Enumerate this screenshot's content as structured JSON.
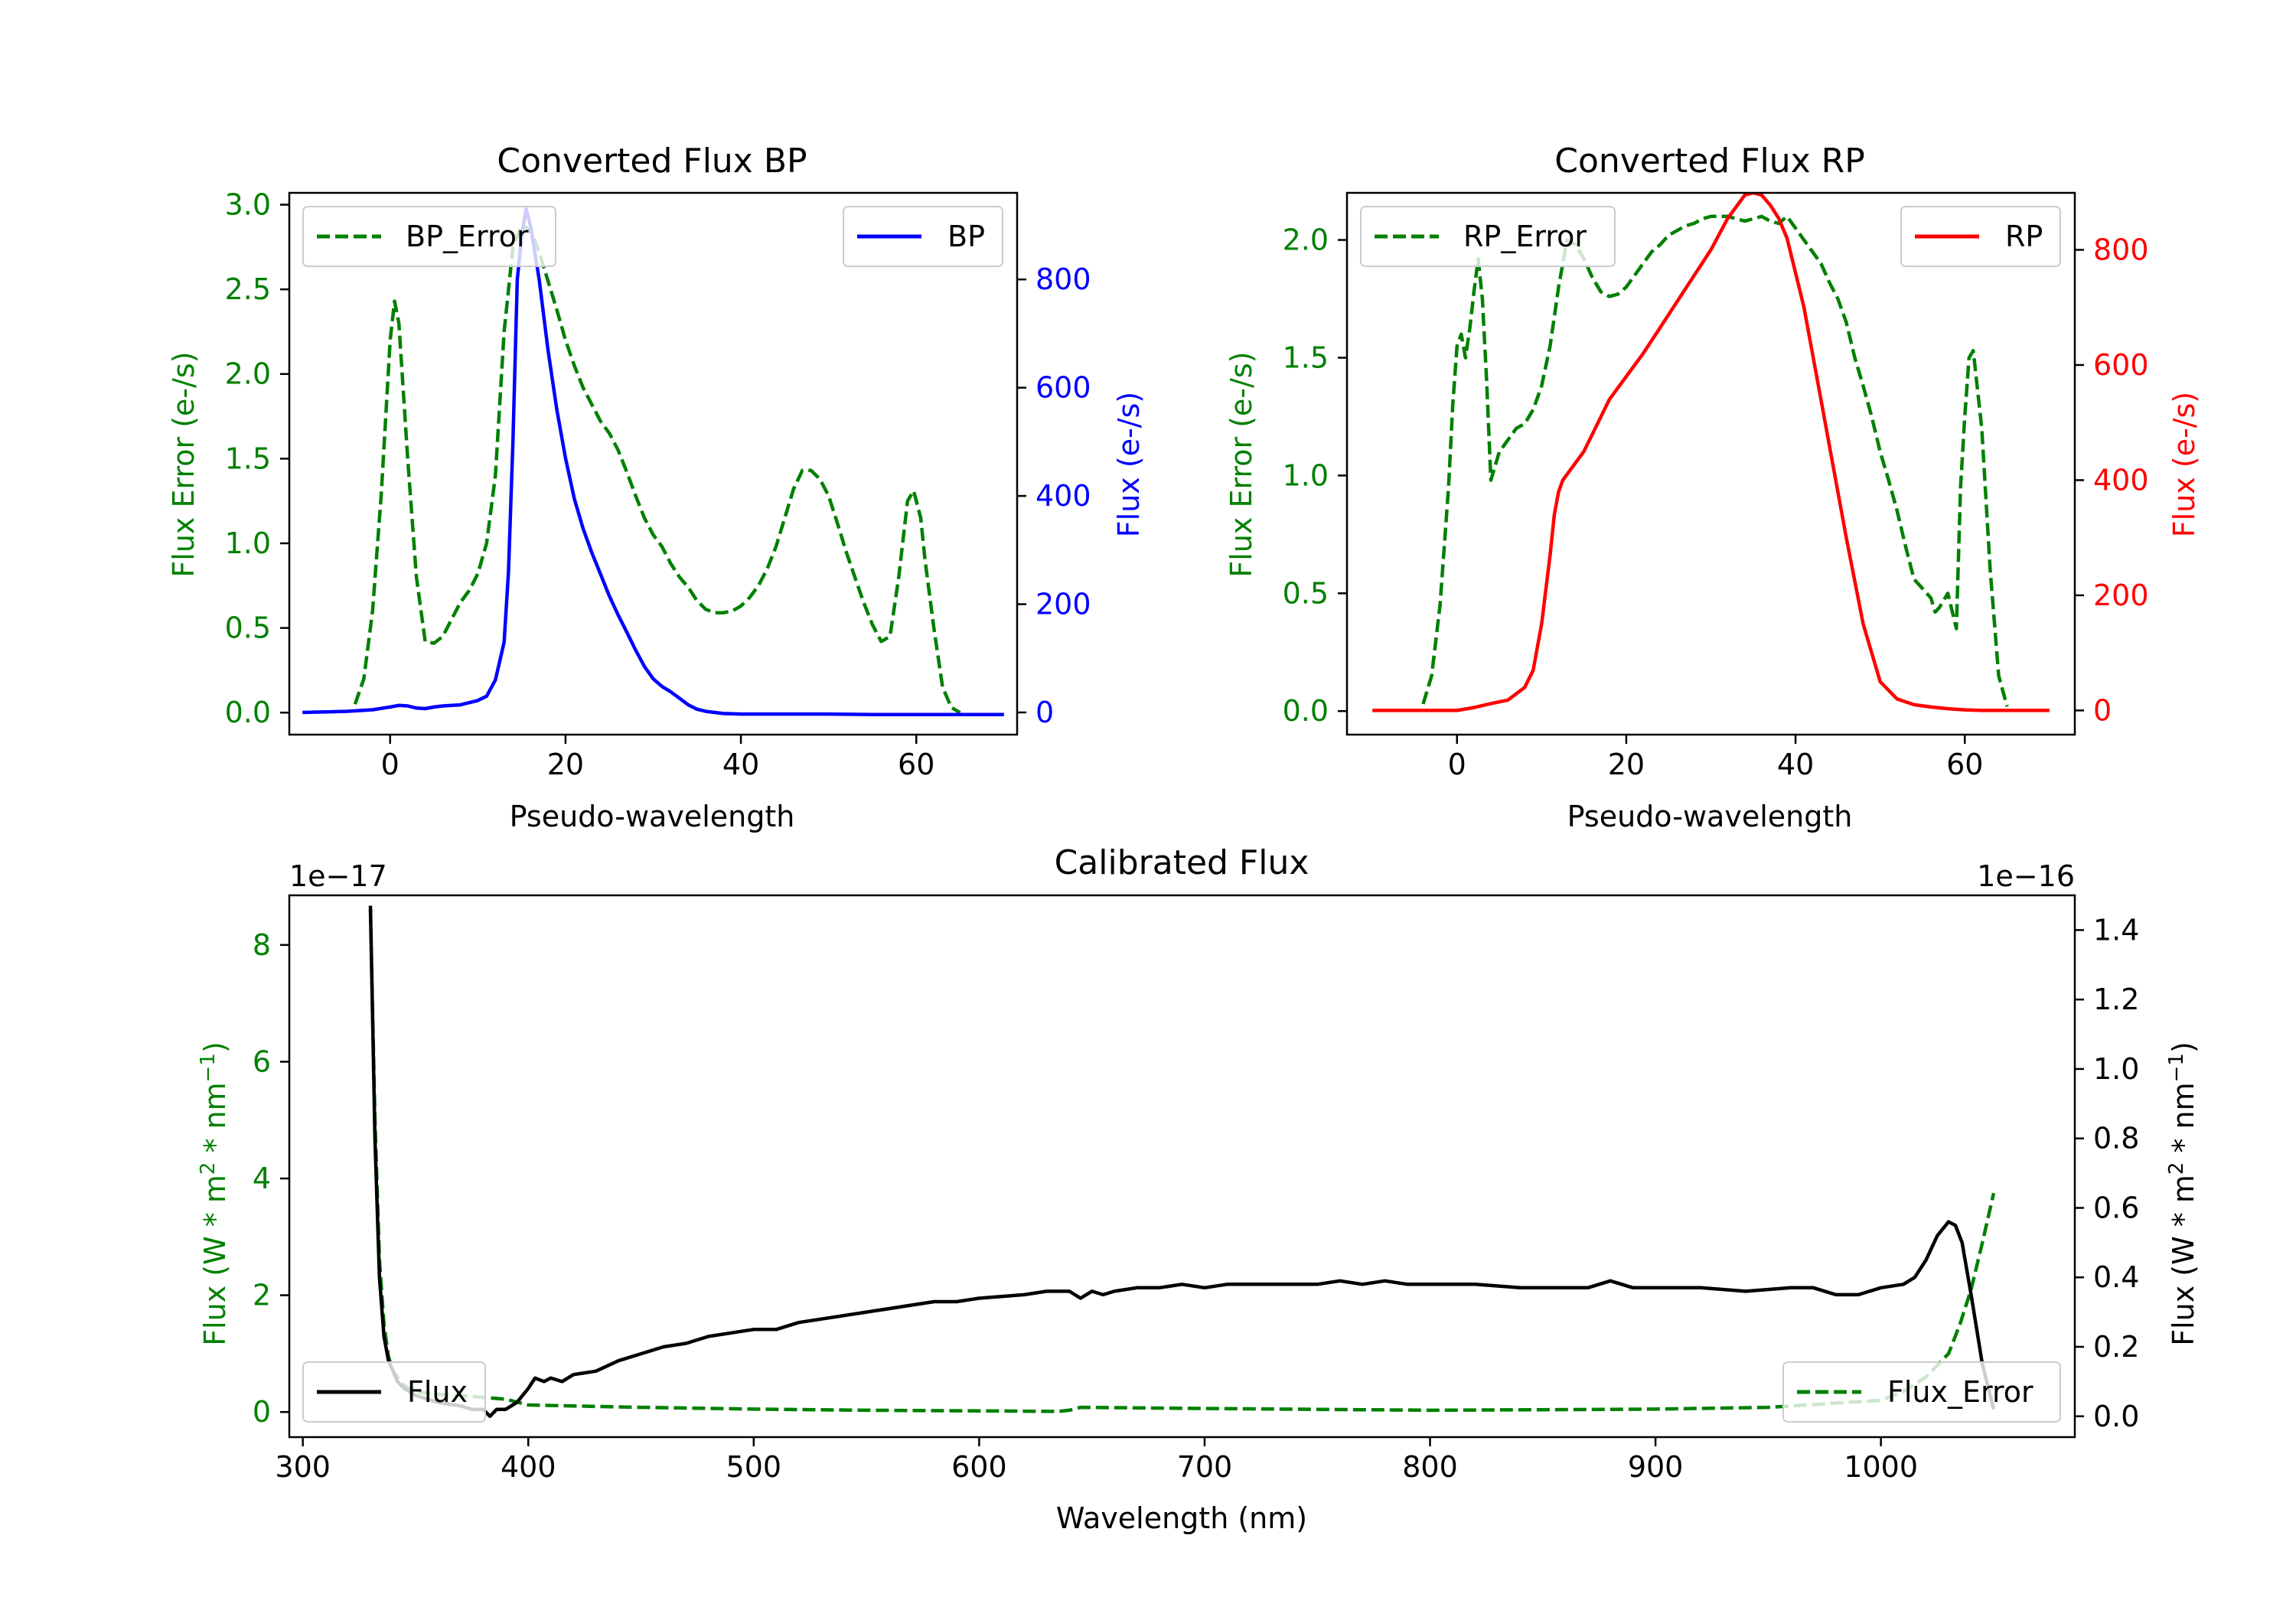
{
  "chart_data": [
    {
      "type": "line",
      "title": "Converted Flux BP",
      "xlabel": "Pseudo-wavelength",
      "ylabel_left": "Flux Error (e-/s)",
      "ylabel_right": "Flux (e-/s)",
      "xlim": [
        -11.5,
        71.5
      ],
      "ylim_left": [
        -0.13,
        3.07
      ],
      "ylim_right": [
        -41,
        960
      ],
      "x_ticks": [
        0,
        20,
        40,
        60
      ],
      "x_tick_labels": [
        "0",
        "20",
        "40",
        "60"
      ],
      "y_left_ticks": [
        0.0,
        0.5,
        1.0,
        1.5,
        2.0,
        2.5,
        3.0
      ],
      "y_left_tick_labels": [
        "0.0",
        "0.5",
        "1.0",
        "1.5",
        "2.0",
        "2.5",
        "3.0"
      ],
      "y_right_ticks": [
        0,
        200,
        400,
        600,
        800
      ],
      "y_right_tick_labels": [
        "0",
        "200",
        "400",
        "600",
        "800"
      ],
      "colors": {
        "left": "#008000",
        "right": "#0000ff"
      },
      "series": [
        {
          "name": "BP_Error",
          "axis": "left",
          "style": "dashed",
          "color": "#008000",
          "x": [
            -4,
            -3,
            -2,
            -1,
            0,
            0.5,
            1,
            2,
            3,
            4,
            5,
            6,
            7,
            8,
            9,
            10,
            11,
            12,
            13,
            14,
            15,
            16,
            17,
            18,
            19,
            20,
            21,
            22,
            23,
            24,
            25,
            26,
            27,
            28,
            29,
            30,
            31,
            32,
            33,
            34,
            35,
            36,
            37,
            38,
            39,
            40,
            41,
            42,
            43,
            44,
            45,
            46,
            47,
            48,
            49,
            50,
            51,
            52,
            53,
            54,
            55,
            56,
            57,
            58,
            59,
            59.7,
            60.5,
            61,
            62,
            63,
            64,
            65
          ],
          "y": [
            0.05,
            0.2,
            0.6,
            1.3,
            2.2,
            2.43,
            2.3,
            1.5,
            0.8,
            0.42,
            0.41,
            0.45,
            0.55,
            0.65,
            0.72,
            0.82,
            1.0,
            1.4,
            2.25,
            2.75,
            2.88,
            2.85,
            2.72,
            2.55,
            2.38,
            2.2,
            2.05,
            1.92,
            1.82,
            1.72,
            1.65,
            1.55,
            1.42,
            1.28,
            1.15,
            1.05,
            0.98,
            0.88,
            0.8,
            0.74,
            0.66,
            0.61,
            0.59,
            0.59,
            0.6,
            0.63,
            0.68,
            0.75,
            0.85,
            0.98,
            1.15,
            1.32,
            1.43,
            1.43,
            1.38,
            1.28,
            1.12,
            0.95,
            0.8,
            0.65,
            0.52,
            0.42,
            0.45,
            0.8,
            1.25,
            1.31,
            1.15,
            0.9,
            0.5,
            0.15,
            0.03,
            0.0
          ]
        },
        {
          "name": "BP",
          "axis": "right",
          "style": "solid",
          "color": "#0000ff",
          "x": [
            -10,
            -5,
            -2,
            0,
            1,
            2,
            3,
            4,
            5,
            6,
            8,
            10,
            11,
            12,
            13,
            13.5,
            14,
            14.5,
            15,
            15.5,
            16,
            17,
            18,
            19,
            20,
            21,
            22,
            23,
            24,
            25,
            26,
            27,
            28,
            29,
            30,
            31,
            32,
            33,
            34,
            35,
            36,
            37,
            38,
            40,
            45,
            50,
            55,
            60,
            65,
            70
          ],
          "y": [
            0,
            2,
            5,
            10,
            13,
            12,
            8,
            7,
            10,
            12,
            14,
            22,
            30,
            60,
            130,
            260,
            500,
            800,
            880,
            930,
            900,
            800,
            670,
            560,
            470,
            395,
            340,
            295,
            255,
            215,
            180,
            148,
            115,
            85,
            62,
            48,
            38,
            26,
            14,
            6,
            2,
            0,
            -2,
            -3,
            -3,
            -3,
            -4,
            -4,
            -4,
            -4
          ]
        }
      ],
      "legend": [
        {
          "label": "BP_Error",
          "style": "dashed",
          "color": "#008000",
          "location": "upper left"
        },
        {
          "label": "BP",
          "style": "solid",
          "color": "#0000ff",
          "location": "upper right"
        }
      ]
    },
    {
      "type": "line",
      "title": "Converted Flux RP",
      "xlabel": "Pseudo-wavelength",
      "ylabel_left": "Flux Error (e-/s)",
      "ylabel_right": "Flux (e-/s)",
      "xlim": [
        -13,
        73
      ],
      "ylim_left": [
        -0.1,
        2.2
      ],
      "ylim_right": [
        -42,
        899
      ],
      "x_ticks": [
        0,
        20,
        40,
        60
      ],
      "x_tick_labels": [
        "0",
        "20",
        "40",
        "60"
      ],
      "y_left_ticks": [
        0.0,
        0.5,
        1.0,
        1.5,
        2.0
      ],
      "y_left_tick_labels": [
        "0.0",
        "0.5",
        "1.0",
        "1.5",
        "2.0"
      ],
      "y_right_ticks": [
        0,
        200,
        400,
        600,
        800
      ],
      "y_right_tick_labels": [
        "0",
        "200",
        "400",
        "600",
        "800"
      ],
      "colors": {
        "left": "#008000",
        "right": "#ff0000"
      },
      "series": [
        {
          "name": "RP_Error",
          "axis": "left",
          "style": "dashed",
          "color": "#008000",
          "x": [
            -4,
            -3,
            -2,
            -1,
            -0.5,
            0,
            0.5,
            1,
            1.5,
            2,
            2.5,
            3,
            3.5,
            4,
            5,
            6,
            7,
            8,
            9,
            10,
            11,
            12,
            13,
            14,
            15,
            16,
            17,
            18,
            19,
            20,
            21,
            22,
            23,
            24,
            25,
            26,
            27,
            28,
            29,
            30,
            31,
            32,
            33,
            34,
            35,
            36,
            37,
            38,
            39,
            40,
            41,
            42,
            43,
            44,
            45,
            46,
            47,
            48,
            49,
            50,
            51,
            52,
            53,
            54,
            55,
            56,
            56.5,
            57,
            58,
            59,
            59.5,
            60,
            60.5,
            61,
            62,
            63,
            64,
            65
          ],
          "y": [
            0.03,
            0.15,
            0.45,
            0.95,
            1.3,
            1.55,
            1.6,
            1.5,
            1.62,
            1.78,
            1.92,
            1.75,
            1.4,
            0.98,
            1.1,
            1.15,
            1.2,
            1.22,
            1.28,
            1.38,
            1.55,
            1.8,
            2.0,
            1.98,
            1.92,
            1.84,
            1.78,
            1.76,
            1.77,
            1.8,
            1.85,
            1.9,
            1.95,
            1.98,
            2.02,
            2.04,
            2.06,
            2.07,
            2.09,
            2.1,
            2.1,
            2.1,
            2.09,
            2.08,
            2.09,
            2.1,
            2.08,
            2.07,
            2.1,
            2.05,
            2.0,
            1.95,
            1.9,
            1.82,
            1.75,
            1.65,
            1.5,
            1.38,
            1.25,
            1.1,
            0.98,
            0.85,
            0.7,
            0.56,
            0.52,
            0.48,
            0.42,
            0.44,
            0.5,
            0.35,
            0.95,
            1.25,
            1.5,
            1.53,
            1.2,
            0.6,
            0.15,
            0.02
          ],
          "note": "values in y are Flux Error (e-/s)"
        },
        {
          "name": "RP",
          "axis": "right",
          "style": "solid",
          "color": "#ff0000",
          "x": [
            -10,
            -5,
            0,
            2,
            4,
            6,
            8,
            9,
            10,
            11,
            11.5,
            12,
            12.5,
            13,
            14,
            15,
            16,
            18,
            20,
            22,
            24,
            26,
            28,
            30,
            32,
            33,
            34,
            35,
            36,
            37,
            38,
            39,
            40,
            41,
            42,
            43,
            44,
            46,
            48,
            50,
            52,
            54,
            56,
            58,
            60,
            62,
            65,
            70
          ],
          "y": [
            0,
            0,
            0,
            5,
            12,
            18,
            40,
            70,
            150,
            270,
            340,
            380,
            400,
            410,
            430,
            450,
            480,
            540,
            580,
            620,
            665,
            710,
            755,
            800,
            855,
            875,
            895,
            899,
            895,
            878,
            855,
            820,
            760,
            700,
            620,
            540,
            460,
            300,
            150,
            50,
            20,
            10,
            6,
            3,
            1,
            0,
            0,
            0
          ]
        }
      ],
      "legend": [
        {
          "label": "RP_Error",
          "style": "dashed",
          "color": "#008000",
          "location": "upper left"
        },
        {
          "label": "RP",
          "style": "solid",
          "color": "#ff0000",
          "location": "upper right"
        }
      ]
    },
    {
      "type": "line",
      "title": "Calibrated Flux",
      "xlabel": "Wavelength (nm)",
      "ylabel_left": "Flux (W * m^2 * nm^-1)",
      "ylabel_right": "Flux (W * m^2 * nm^-1)",
      "y_left_offset_label": "1e−17",
      "y_right_offset_label": "1e−16",
      "xlim": [
        294,
        1086
      ],
      "ylim_left": [
        -0.43,
        8.85
      ],
      "ylim_right": [
        -0.06,
        1.5
      ],
      "x_ticks": [
        300,
        400,
        500,
        600,
        700,
        800,
        900,
        1000
      ],
      "x_tick_labels": [
        "300",
        "400",
        "500",
        "600",
        "700",
        "800",
        "900",
        "1000"
      ],
      "y_left_ticks": [
        0,
        2,
        4,
        6,
        8
      ],
      "y_left_tick_labels": [
        "0",
        "2",
        "4",
        "6",
        "8"
      ],
      "y_right_ticks": [
        0.0,
        0.2,
        0.4,
        0.6,
        0.8,
        1.0,
        1.2,
        1.4
      ],
      "y_right_tick_labels": [
        "0.0",
        "0.2",
        "0.4",
        "0.6",
        "0.8",
        "1.0",
        "1.2",
        "1.4"
      ],
      "colors": {
        "left": "#008000",
        "right": "#000000"
      },
      "series": [
        {
          "name": "Flux_Error",
          "axis": "left",
          "style": "dashed",
          "color": "#008000",
          "x": [
            330,
            332,
            334,
            336,
            338,
            340,
            345,
            350,
            360,
            370,
            380,
            390,
            400,
            450,
            500,
            550,
            600,
            635,
            640,
            645,
            700,
            800,
            900,
            950,
            1000,
            1010,
            1020,
            1030,
            1035,
            1040,
            1045,
            1050
          ],
          "y": [
            8.6,
            5.0,
            2.6,
            1.5,
            0.95,
            0.7,
            0.45,
            0.35,
            0.3,
            0.28,
            0.25,
            0.22,
            0.12,
            0.08,
            0.05,
            0.03,
            0.02,
            0.01,
            0.03,
            0.08,
            0.06,
            0.03,
            0.05,
            0.08,
            0.2,
            0.35,
            0.6,
            1.0,
            1.5,
            2.1,
            2.9,
            3.75
          ]
        },
        {
          "name": "Flux",
          "axis": "right",
          "style": "solid",
          "color": "#000000",
          "x": [
            330,
            332,
            334,
            336,
            338,
            340,
            342,
            345,
            350,
            355,
            360,
            370,
            375,
            380,
            383,
            386,
            390,
            395,
            400,
            403,
            407,
            410,
            415,
            420,
            430,
            440,
            450,
            460,
            470,
            480,
            490,
            500,
            510,
            520,
            530,
            540,
            550,
            560,
            570,
            580,
            590,
            600,
            620,
            630,
            640,
            645,
            650,
            655,
            660,
            670,
            680,
            690,
            700,
            710,
            720,
            730,
            740,
            750,
            760,
            770,
            780,
            790,
            800,
            820,
            840,
            860,
            870,
            880,
            890,
            900,
            920,
            940,
            960,
            970,
            980,
            990,
            1000,
            1010,
            1015,
            1020,
            1025,
            1030,
            1033,
            1036,
            1040,
            1045,
            1050
          ],
          "y": [
            1.47,
            0.8,
            0.4,
            0.23,
            0.16,
            0.13,
            0.1,
            0.08,
            0.06,
            0.05,
            0.04,
            0.03,
            0.02,
            0.02,
            0.0,
            0.02,
            0.02,
            0.04,
            0.08,
            0.11,
            0.1,
            0.11,
            0.1,
            0.12,
            0.13,
            0.16,
            0.18,
            0.2,
            0.21,
            0.23,
            0.24,
            0.25,
            0.25,
            0.27,
            0.28,
            0.29,
            0.3,
            0.31,
            0.32,
            0.33,
            0.33,
            0.34,
            0.35,
            0.36,
            0.36,
            0.34,
            0.36,
            0.35,
            0.36,
            0.37,
            0.37,
            0.38,
            0.37,
            0.38,
            0.38,
            0.38,
            0.38,
            0.38,
            0.39,
            0.38,
            0.39,
            0.38,
            0.38,
            0.38,
            0.37,
            0.37,
            0.37,
            0.39,
            0.37,
            0.37,
            0.37,
            0.36,
            0.37,
            0.37,
            0.35,
            0.35,
            0.37,
            0.38,
            0.4,
            0.45,
            0.52,
            0.56,
            0.55,
            0.5,
            0.35,
            0.15,
            0.02
          ]
        }
      ],
      "legend": [
        {
          "label": "Flux",
          "style": "solid",
          "color": "#000000",
          "location": "lower left"
        },
        {
          "label": "Flux_Error",
          "style": "dashed",
          "color": "#008000",
          "location": "lower right"
        }
      ]
    }
  ]
}
